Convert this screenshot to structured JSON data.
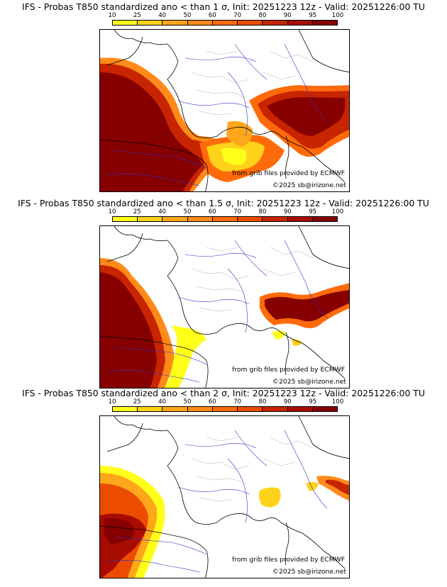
{
  "colorbar": {
    "ticks": [
      "10",
      "25",
      "40",
      "50",
      "60",
      "70",
      "80",
      "90",
      "95",
      "100"
    ],
    "colors": [
      "#ffff1a",
      "#ffd21a",
      "#ffa71a",
      "#ff8a1a",
      "#ff6a0a",
      "#ec4c00",
      "#c82400",
      "#a80c00",
      "#860000",
      "#5e0000"
    ]
  },
  "panels": [
    {
      "title": "IFS - Probas T850  standardized ano < than 1 σ, Init: 20251223 12z - Valid: 20251226:00 TU",
      "credit_grib": "from grib files provided by ECMWF",
      "credit_copy": "©2025 sb@irizone.net"
    },
    {
      "title": "IFS - Probas T850  standardized ano < than 1.5 σ, Init: 20251223 12z - Valid: 20251226:00 TU",
      "credit_grib": "from grib files provided by ECMWF",
      "credit_copy": "©2025 sb@irizone.net"
    },
    {
      "title": "IFS - Probas T850  standardized ano < than 2 σ, Init: 20251223 12z - Valid: 20251226:00 TU",
      "credit_grib": "from grib files provided by ECMWF",
      "credit_copy": "©2025 sb@irizone.net"
    }
  ]
}
